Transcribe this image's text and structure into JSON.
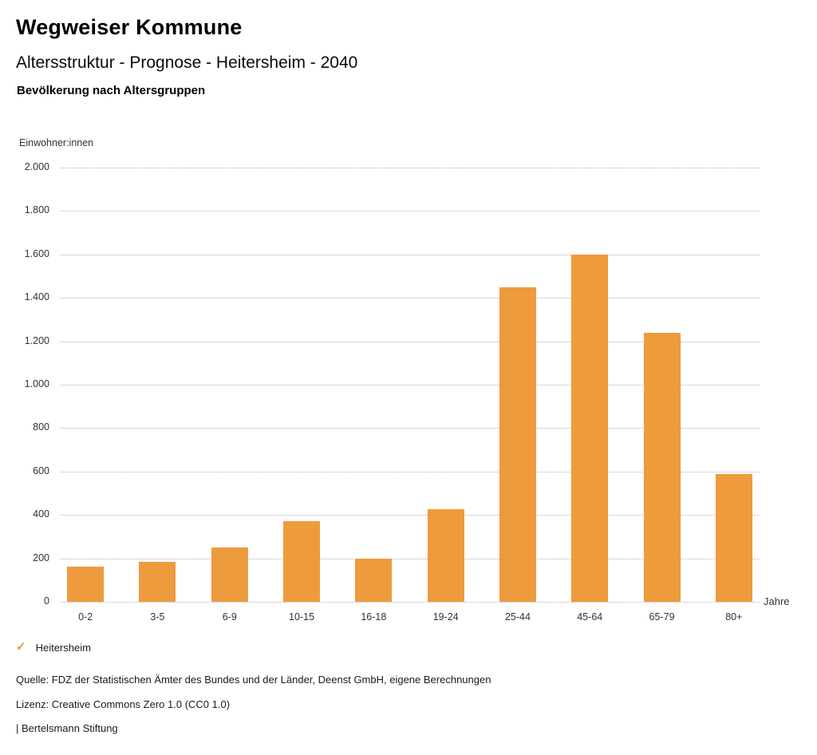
{
  "header": {
    "title": "Wegweiser Kommune",
    "subtitle": "Altersstruktur - Prognose - Heitersheim - 2040",
    "chart_heading": "Bevölkerung nach Altersgruppen"
  },
  "chart_data": {
    "type": "bar",
    "title": "Bevölkerung nach Altersgruppen",
    "categories": [
      "0-2",
      "3-5",
      "6-9",
      "10-15",
      "16-18",
      "19-24",
      "25-44",
      "45-64",
      "65-79",
      "80+"
    ],
    "values": [
      160,
      185,
      250,
      370,
      200,
      425,
      1450,
      1600,
      1240,
      590
    ],
    "series_name": "Heitersheim",
    "xlabel": "Jahre",
    "ylabel": "Einwohner:innen",
    "ylim": [
      0,
      2000
    ],
    "ytick_step": 200,
    "ytick_labels": [
      "0",
      "200",
      "400",
      "600",
      "800",
      "1.000",
      "1.200",
      "1.400",
      "1.600",
      "1.800",
      "2.000"
    ],
    "grid": "horizontal dotted",
    "legend_position": "bottom-left"
  },
  "legend": {
    "check_icon": "✓",
    "label": "Heitersheim"
  },
  "footer": {
    "source": "Quelle: FDZ der Statistischen Ämter des Bundes und der Länder, Deenst GmbH, eigene Berechnungen",
    "license": "Lizenz: Creative Commons Zero 1.0 (CC0 1.0)",
    "branding": "| Bertelsmann Stiftung"
  },
  "colors": {
    "bar": "#ED9B3D",
    "check": "#E8983A",
    "grid": "#B3B3B3",
    "text": "#1A1A1A"
  }
}
